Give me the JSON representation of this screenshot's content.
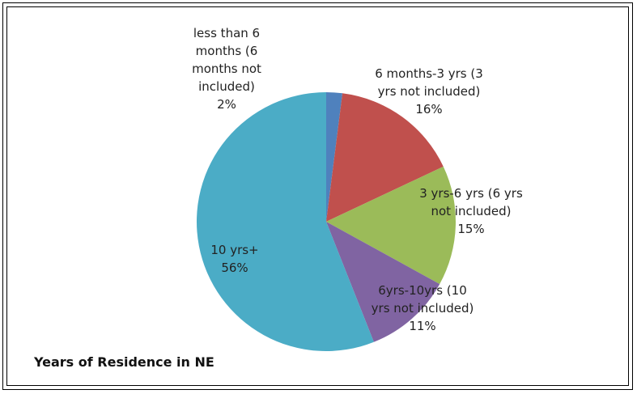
{
  "chart_data": {
    "type": "pie",
    "title": "Years of Residence in NE",
    "categories": [
      "less than 6 months (6 months not included)",
      "6 months-3 yrs (3 yrs not included)",
      "3 yrs-6 yrs (6 yrs not included)",
      "6yrs-10yrs (10 yrs not included)",
      "10 yrs+"
    ],
    "values": [
      2,
      16,
      15,
      11,
      56
    ],
    "value_labels": [
      "2%",
      "16%",
      "15%",
      "11%",
      "56%"
    ],
    "colors": [
      "#4f81bd",
      "#c0504d",
      "#9bbb59",
      "#8064a2",
      "#4bacc6"
    ]
  }
}
